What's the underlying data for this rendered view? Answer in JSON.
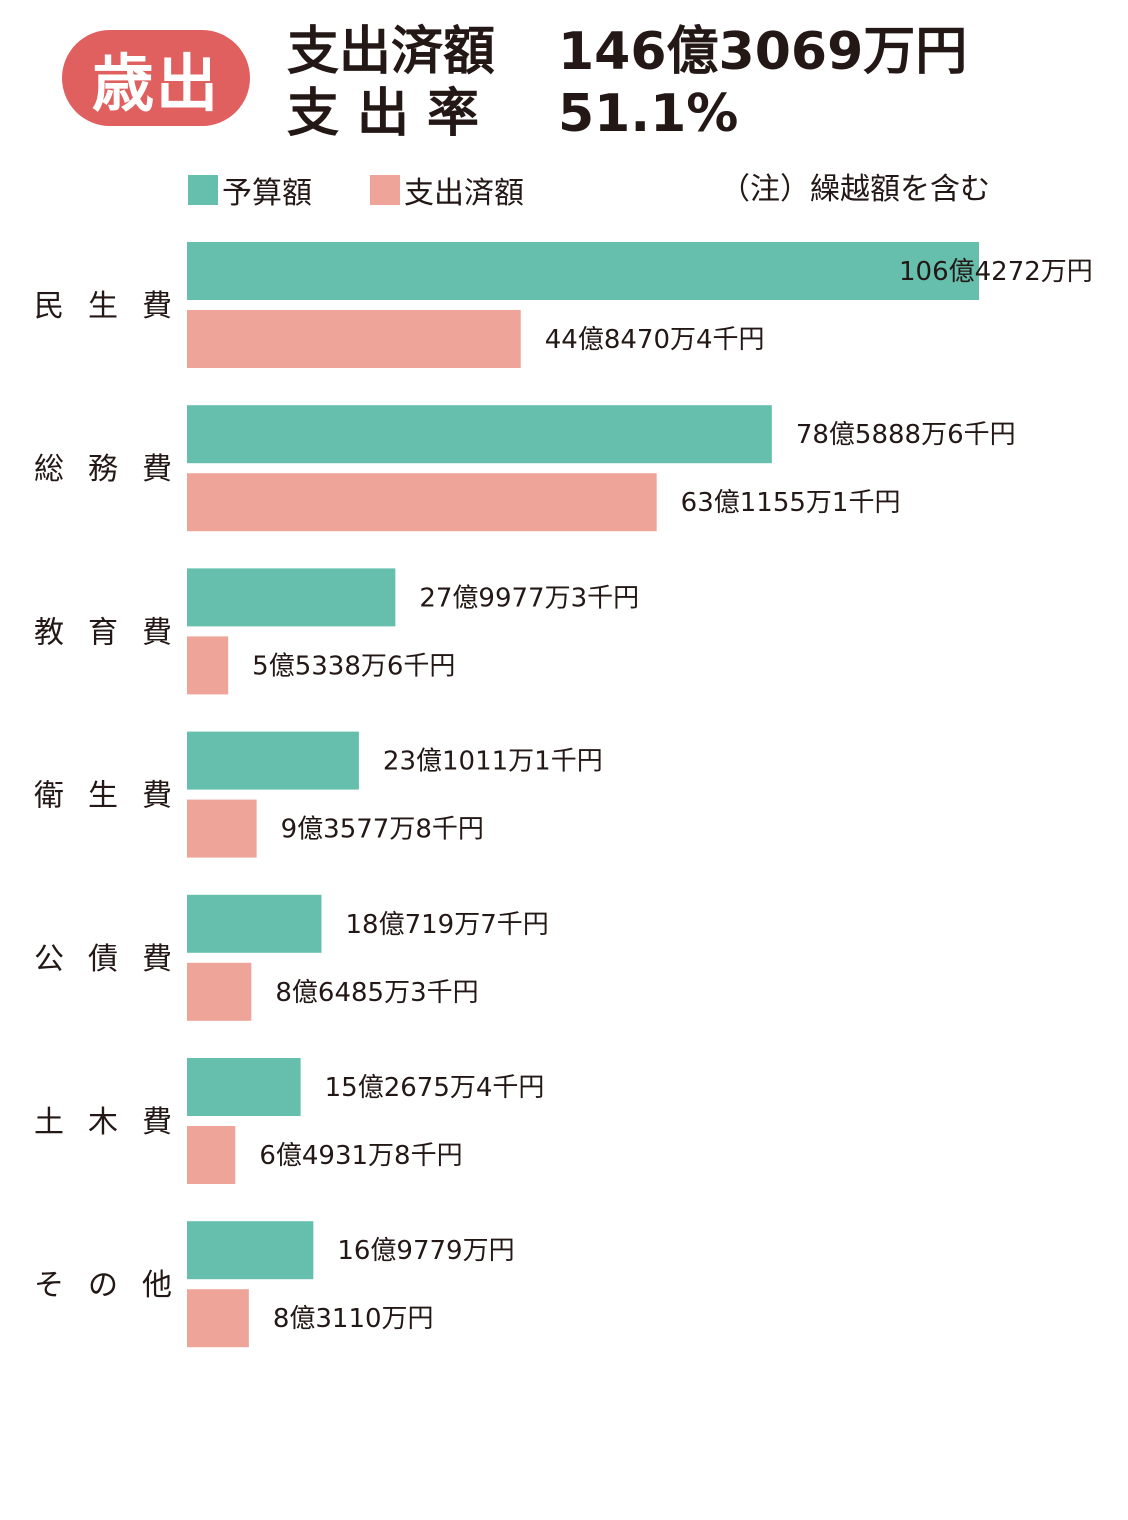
{
  "header": {
    "badge": "歳出",
    "row1_label": "支出済額",
    "row1_value": "146億3069万円",
    "row2_label": "支出率",
    "row2_value": "51.1%"
  },
  "colors": {
    "budget": "#66bfac",
    "spent": "#efa499",
    "badge": "#e0605f"
  },
  "chart_data": {
    "type": "bar",
    "orientation": "horizontal",
    "title": "",
    "xlabel": "",
    "ylabel": "",
    "legend": [
      "予算額",
      "支出済額"
    ],
    "note": "（注）繰越額を含む",
    "unit": "円",
    "categories": [
      "民生費",
      "総務費",
      "教育費",
      "衛生費",
      "公債費",
      "土木費",
      "その他"
    ],
    "series": [
      {
        "name": "予算額",
        "values": [
          10642720000,
          7858886000,
          2799773000,
          2310111000,
          1807197000,
          1526754000,
          1697790000
        ],
        "labels": [
          "106億4272万円",
          "78億5888万6千円",
          "27億9977万3千円",
          "23億1011万1千円",
          "18億719万7千円",
          "15億2675万4千円",
          "16億9779万円"
        ]
      },
      {
        "name": "支出済額",
        "values": [
          4484704000,
          6311551000,
          553386000,
          935778000,
          864853000,
          649318000,
          831100000
        ],
        "labels": [
          "44億8470万4千円",
          "63億1155万1千円",
          "5億5338万6千円",
          "9億3577万8千円",
          "8億6485万3千円",
          "6億4931万8千円",
          "8億3110万円"
        ]
      }
    ]
  }
}
